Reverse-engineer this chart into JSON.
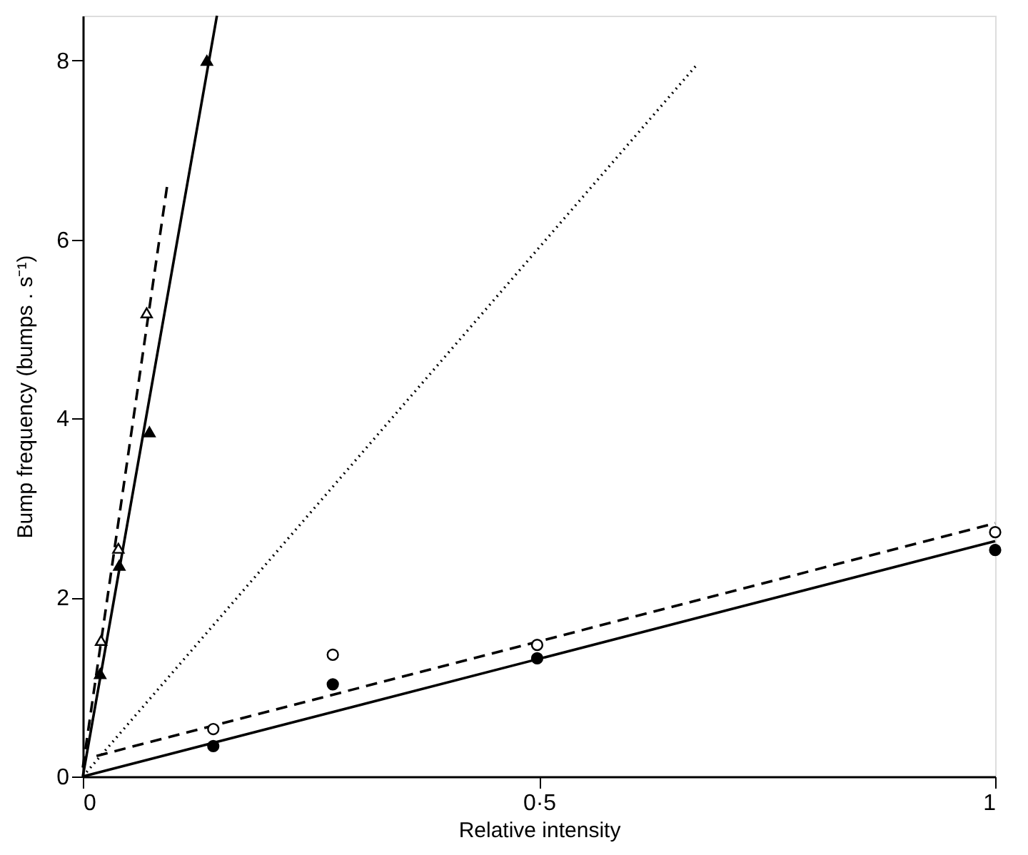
{
  "chart_data": {
    "type": "scatter",
    "xlabel": "Relative intensity",
    "ylabel": "Bump frequency (bumps . s⁻¹)",
    "xlim": [
      0,
      1
    ],
    "ylim": [
      0,
      8.5
    ],
    "xticks": [
      0,
      {
        "value": 0.5,
        "label": "0·5"
      },
      1
    ],
    "yticks": [
      0,
      2,
      4,
      6,
      8
    ],
    "grid": false,
    "legend": false,
    "series": [
      {
        "type": "line",
        "color": "#000000",
        "line_style": "solid",
        "marker": "none",
        "x": [
          0,
          0.147
        ],
        "values": [
          0,
          8.5
        ]
      },
      {
        "type": "line",
        "color": "#000000",
        "line_style": "dashed",
        "marker": "none",
        "x": [
          0,
          0.093
        ],
        "values": [
          0.1,
          6.64
        ]
      },
      {
        "type": "line",
        "color": "#000000",
        "line_style": "dotted",
        "marker": "none",
        "x": [
          0,
          0.672
        ],
        "values": [
          0,
          7.94
        ]
      },
      {
        "type": "line",
        "color": "#000000",
        "line_style": "solid",
        "marker": "none",
        "x": [
          0,
          1
        ],
        "values": [
          0,
          2.63
        ]
      },
      {
        "type": "line",
        "color": "#000000",
        "line_style": "dashed",
        "marker": "none",
        "x": [
          0.015,
          1
        ],
        "values": [
          0.23,
          2.83
        ]
      },
      {
        "color": "#000000",
        "marker": "triangle",
        "x": [
          0.019,
          0.04,
          0.073,
          0.136
        ],
        "values": [
          1.15,
          2.36,
          3.85,
          8.0
        ]
      },
      {
        "color": "#ffffff",
        "marker": "triangle",
        "x": [
          0.02,
          0.039,
          0.07
        ],
        "values": [
          1.52,
          2.55,
          5.18
        ]
      },
      {
        "color": "#000000",
        "marker": "circle",
        "x": [
          0.143,
          0.274,
          0.498,
          1.0
        ],
        "values": [
          0.34,
          1.03,
          1.32,
          2.53
        ]
      },
      {
        "color": "#ffffff",
        "marker": "circle",
        "x": [
          0.143,
          0.274,
          0.498,
          1.0
        ],
        "values": [
          0.53,
          1.36,
          1.47,
          2.73
        ]
      }
    ]
  }
}
